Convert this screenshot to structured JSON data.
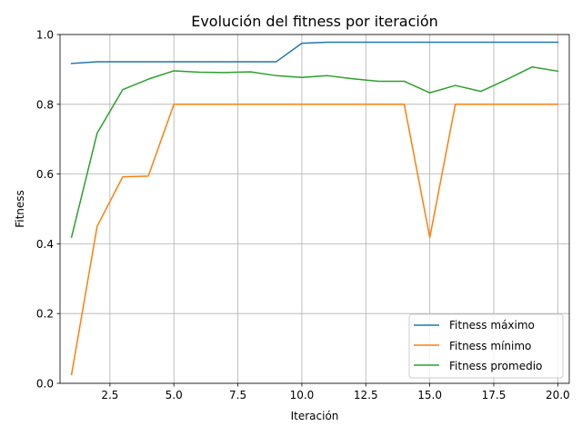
{
  "chart_data": {
    "type": "line",
    "title": "Evolución del fitness por iteración",
    "xlabel": "Iteración",
    "ylabel": "Fitness",
    "xlim": [
      0.55,
      20.45
    ],
    "ylim": [
      0.0,
      1.0
    ],
    "xticks": [
      2.5,
      5.0,
      7.5,
      10.0,
      12.5,
      15.0,
      17.5,
      20.0
    ],
    "xtick_labels": [
      "2.5",
      "5.0",
      "7.5",
      "10.0",
      "12.5",
      "15.0",
      "17.5",
      "20.0"
    ],
    "yticks": [
      0.0,
      0.2,
      0.4,
      0.6,
      0.8,
      1.0
    ],
    "ytick_labels": [
      "0.0",
      "0.2",
      "0.4",
      "0.6",
      "0.8",
      "1.0"
    ],
    "grid": true,
    "legend_position": "lower-right",
    "x": [
      1,
      2,
      3,
      4,
      5,
      6,
      7,
      8,
      9,
      10,
      11,
      12,
      13,
      14,
      15,
      16,
      17,
      18,
      19,
      20
    ],
    "series": [
      {
        "name": "Fitness máximo",
        "color": "#1f77b4",
        "values": [
          0.917,
          0.922,
          0.922,
          0.922,
          0.922,
          0.922,
          0.922,
          0.922,
          0.922,
          0.975,
          0.978,
          0.978,
          0.978,
          0.978,
          0.978,
          0.978,
          0.978,
          0.978,
          0.978,
          0.978
        ]
      },
      {
        "name": "Fitness mínimo",
        "color": "#ff7f0e",
        "values": [
          0.025,
          0.45,
          0.592,
          0.594,
          0.8,
          0.8,
          0.8,
          0.8,
          0.8,
          0.8,
          0.8,
          0.8,
          0.8,
          0.8,
          0.418,
          0.8,
          0.8,
          0.8,
          0.8,
          0.8
        ]
      },
      {
        "name": "Fitness promedio",
        "color": "#2ca02c",
        "values": [
          0.419,
          0.717,
          0.842,
          0.872,
          0.896,
          0.892,
          0.891,
          0.893,
          0.882,
          0.877,
          0.882,
          0.873,
          0.866,
          0.866,
          0.833,
          0.854,
          0.837,
          0.871,
          0.907,
          0.895
        ]
      }
    ]
  }
}
